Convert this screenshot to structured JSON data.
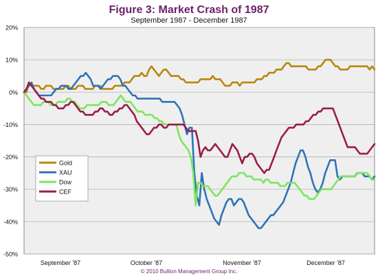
{
  "chart_data": {
    "type": "line",
    "title": "Figure 3: Market Crash of 1987",
    "subtitle": "September 1987 - December 1987",
    "footer": "© 2010 Bullion Management Group Inc.",
    "xlabel": "",
    "ylabel": "",
    "x_tick_labels": [
      "September '87",
      "October '87",
      "November '87",
      "December '87"
    ],
    "y_ticks": [
      20,
      10,
      0,
      -10,
      -20,
      -30,
      -40,
      -50
    ],
    "y_tick_labels": [
      "20%",
      "10%",
      "0%",
      "-10%",
      "-20%",
      "-30%",
      "-40%",
      "-50%"
    ],
    "ylim": [
      -50,
      20
    ],
    "grid": true,
    "legend_position": "left",
    "background_color": "#efefef",
    "grid_color": "#b3b3b3",
    "series": [
      {
        "name": "Gold",
        "color": "#b8860b",
        "values": [
          0,
          0,
          3,
          2,
          2,
          2,
          2,
          1,
          1,
          2,
          2,
          2,
          1,
          1,
          1,
          1,
          1,
          2,
          2,
          1,
          1,
          1,
          2,
          2,
          2,
          1,
          1,
          1,
          1,
          2,
          2,
          2,
          1,
          1,
          1,
          1,
          1,
          2,
          2,
          2,
          2,
          3,
          3,
          3,
          4,
          5,
          5,
          5,
          6,
          5,
          5,
          7,
          8,
          7,
          6,
          5,
          6,
          7,
          7,
          6,
          5,
          5,
          5,
          5,
          4,
          4,
          3,
          3,
          3,
          3,
          3,
          3,
          4,
          4,
          4,
          4,
          4,
          5,
          4,
          4,
          4,
          3,
          2,
          2,
          2,
          3,
          3,
          3,
          2,
          3,
          3,
          3,
          3,
          3,
          3,
          4,
          4,
          4,
          5,
          5,
          6,
          6,
          6,
          7,
          7,
          7,
          8,
          9,
          9,
          8,
          8,
          8,
          8,
          8,
          8,
          8,
          7,
          7,
          7,
          7,
          8,
          8,
          9,
          10,
          10,
          10,
          9,
          8,
          8,
          7,
          7,
          7,
          7,
          8,
          8,
          8,
          8,
          8,
          8,
          8,
          8,
          7,
          8,
          7
        ]
      },
      {
        "name": "XAU",
        "color": "#2d73b8",
        "values": [
          0,
          1,
          2,
          3,
          1,
          0,
          -1,
          -1,
          -1,
          -1,
          -1,
          -1,
          0,
          1,
          1,
          2,
          2,
          2,
          1,
          1,
          2,
          3,
          4,
          5,
          5,
          6,
          5,
          4,
          2,
          2,
          2,
          1,
          2,
          3,
          4,
          4,
          5,
          5,
          5,
          4,
          2,
          2,
          1,
          0,
          -1,
          -1,
          -2,
          -2,
          -2,
          -2,
          -2,
          -2,
          -2,
          -2,
          -2,
          -2,
          -3,
          -3,
          -3,
          -3,
          -3,
          -3,
          -4,
          -5,
          -7,
          -10,
          -13,
          -11,
          -11,
          -25,
          -32,
          -35,
          -25,
          -30,
          -33,
          -35,
          -37,
          -39,
          -40,
          -41,
          -38,
          -36,
          -34,
          -33,
          -33,
          -35,
          -34,
          -33,
          -33,
          -34,
          -36,
          -38,
          -39,
          -40,
          -41,
          -42,
          -42,
          -41,
          -40,
          -39,
          -38,
          -38,
          -37,
          -36,
          -35,
          -34,
          -32,
          -30,
          -28,
          -25,
          -22,
          -20,
          -18,
          -18,
          -20,
          -23,
          -25,
          -28,
          -30,
          -31,
          -30,
          -28,
          -25,
          -23,
          -21,
          -21,
          -21,
          -26,
          -27,
          -26,
          -26,
          -26,
          -26,
          -26,
          -26,
          -25,
          -25,
          -25,
          -26,
          -26,
          -26,
          -27,
          -26
        ]
      },
      {
        "name": "Dow",
        "color": "#7de65c",
        "values": [
          0,
          -1,
          -2,
          -3,
          -4,
          -4,
          -4,
          -4,
          -3,
          -3,
          -3,
          -4,
          -4,
          -4,
          -3,
          -3,
          -3,
          -3,
          -2,
          -2,
          -3,
          -3,
          -4,
          -5,
          -5,
          -5,
          -4,
          -4,
          -4,
          -4,
          -4,
          -4,
          -3,
          -3,
          -3,
          -4,
          -4,
          -4,
          -3,
          -2,
          -1,
          -2,
          -3,
          -3,
          -3,
          -4,
          -5,
          -6,
          -6,
          -6,
          -7,
          -7,
          -7,
          -7,
          -8,
          -8,
          -9,
          -9,
          -10,
          -10,
          -10,
          -10,
          -10,
          -10,
          -13,
          -15,
          -16,
          -17,
          -18,
          -20,
          -25,
          -35,
          -28,
          -28,
          -29,
          -29,
          -29,
          -30,
          -31,
          -32,
          -32,
          -31,
          -30,
          -29,
          -28,
          -27,
          -26,
          -26,
          -26,
          -25,
          -25,
          -25,
          -26,
          -26,
          -26,
          -27,
          -27,
          -27,
          -27,
          -28,
          -27,
          -27,
          -28,
          -28,
          -28,
          -28,
          -29,
          -29,
          -29,
          -28,
          -28,
          -28,
          -28,
          -29,
          -30,
          -31,
          -32,
          -32,
          -33,
          -33,
          -33,
          -32,
          -31,
          -30,
          -30,
          -30,
          -30,
          -30,
          -29,
          -28,
          -27,
          -26,
          -26,
          -26,
          -26,
          -26,
          -26,
          -26,
          -25,
          -25,
          -25,
          -25,
          -25,
          -26,
          -27,
          -27
        ]
      },
      {
        "name": "CEF",
        "color": "#9b1b4a",
        "values": [
          0,
          1,
          3,
          2,
          1,
          0,
          -1,
          -2,
          -2,
          -3,
          -3,
          -3,
          -4,
          -4,
          -5,
          -5,
          -5,
          -4,
          -4,
          -3,
          -3,
          -4,
          -5,
          -6,
          -6,
          -7,
          -7,
          -7,
          -7,
          -6,
          -6,
          -5,
          -5,
          -6,
          -6,
          -7,
          -7,
          -6,
          -6,
          -5,
          -5,
          -4,
          -4,
          -5,
          -6,
          -7,
          -9,
          -10,
          -11,
          -12,
          -13,
          -13,
          -12,
          -11,
          -11,
          -10,
          -10,
          -11,
          -11,
          -10,
          -10,
          -10,
          -10,
          -10,
          -10,
          -10,
          -11,
          -12,
          -12,
          -12,
          -12,
          -15,
          -20,
          -18,
          -17,
          -18,
          -18,
          -17,
          -16,
          -17,
          -18,
          -19,
          -20,
          -20,
          -18,
          -16,
          -17,
          -18,
          -20,
          -22,
          -20,
          -20,
          -19,
          -19,
          -20,
          -22,
          -23,
          -24,
          -25,
          -24,
          -24,
          -22,
          -20,
          -18,
          -16,
          -14,
          -13,
          -12,
          -11,
          -11,
          -11,
          -10,
          -10,
          -10,
          -10,
          -9,
          -9,
          -8,
          -7,
          -7,
          -6,
          -6,
          -5,
          -5,
          -5,
          -5,
          -5,
          -7,
          -9,
          -11,
          -13,
          -15,
          -17,
          -17,
          -17,
          -17,
          -18,
          -19,
          -19,
          -19,
          -19,
          -18,
          -17,
          -16
        ]
      }
    ]
  }
}
